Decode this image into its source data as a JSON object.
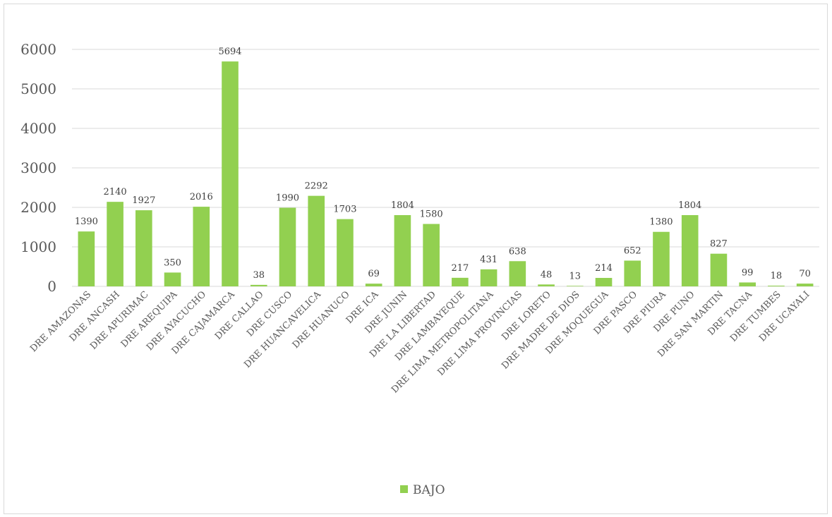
{
  "chart_data": {
    "type": "bar",
    "categories": [
      "DRE AMAZONAS",
      "DRE ANCASH",
      "DRE APURIMAC",
      "DRE AREQUIPA",
      "DRE AYACUCHO",
      "DRE CAJAMARCA",
      "DRE CALLAO",
      "DRE CUSCO",
      "DRE HUANCAVELICA",
      "DRE HUANUCO",
      "DRE ICA",
      "DRE JUNIN",
      "DRE LA LIBERTAD",
      "DRE LAMBAYEQUE",
      "DRE LIMA METROPOLITANA",
      "DRE LIMA PROVINCIAS",
      "DRE LORETO",
      "DRE MADRE DE DIOS",
      "DRE MOQUEGUA",
      "DRE PASCO",
      "DRE PIURA",
      "DRE PUNO",
      "DRE SAN MARTIN",
      "DRE TACNA",
      "DRE TUMBES",
      "DRE UCAYALI"
    ],
    "series": [
      {
        "name": "BAJO",
        "values": [
          1390,
          2140,
          1927,
          350,
          2016,
          5694,
          38,
          1990,
          2292,
          1703,
          69,
          1804,
          1580,
          217,
          431,
          638,
          48,
          13,
          214,
          652,
          1380,
          1804,
          827,
          99,
          18,
          70
        ]
      }
    ],
    "ylim": [
      0,
      6000
    ],
    "yticks": [
      0,
      1000,
      2000,
      3000,
      4000,
      5000,
      6000
    ],
    "grid": true,
    "legend_position": "bottom",
    "colors": {
      "bar": "#92d050",
      "grid": "#d9d9d9",
      "text": "#595959"
    }
  }
}
